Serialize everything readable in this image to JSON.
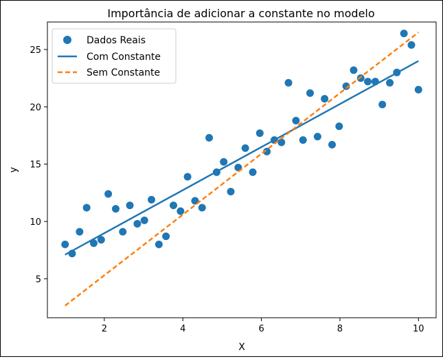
{
  "chart_data": {
    "type": "scatter",
    "title": "Importância de adicionar a constante no modelo",
    "xlabel": "X",
    "ylabel": "y",
    "xlim": [
      0.55,
      10.45
    ],
    "ylim": [
      1.6,
      27.4
    ],
    "xticks": [
      2,
      4,
      6,
      8,
      10
    ],
    "yticks": [
      5,
      10,
      15,
      20,
      25
    ],
    "grid": false,
    "legend_position": "top-left",
    "colors": {
      "points": "#1f77b4",
      "with_const": "#1f77b4",
      "no_const": "#ff7f0e"
    },
    "series": [
      {
        "name": "Dados Reais",
        "kind": "scatter",
        "x": [
          1.0,
          1.18,
          1.37,
          1.55,
          1.73,
          1.92,
          2.1,
          2.29,
          2.47,
          2.65,
          2.84,
          3.02,
          3.2,
          3.39,
          3.57,
          3.76,
          3.94,
          4.12,
          4.31,
          4.49,
          4.67,
          4.86,
          5.04,
          5.22,
          5.41,
          5.59,
          5.78,
          5.96,
          6.14,
          6.33,
          6.51,
          6.69,
          6.88,
          7.06,
          7.24,
          7.43,
          7.61,
          7.8,
          7.98,
          8.16,
          8.35,
          8.53,
          8.71,
          8.9,
          9.08,
          9.27,
          9.45,
          9.63,
          9.82,
          10.0
        ],
        "y": [
          8.0,
          7.2,
          9.1,
          11.2,
          8.1,
          8.4,
          12.4,
          11.1,
          9.1,
          11.4,
          9.8,
          10.1,
          11.9,
          8.0,
          8.7,
          11.4,
          10.9,
          13.9,
          11.8,
          11.2,
          17.3,
          14.3,
          15.2,
          12.6,
          14.7,
          16.4,
          14.3,
          17.7,
          16.1,
          17.1,
          16.9,
          22.1,
          18.8,
          17.1,
          21.2,
          17.4,
          20.7,
          16.7,
          18.3,
          21.8,
          23.2,
          22.5,
          22.2,
          22.2,
          20.2,
          22.1,
          23.0,
          26.4,
          25.4,
          21.5
        ]
      },
      {
        "name": "Com Constante",
        "kind": "line",
        "style": "solid",
        "x": [
          1,
          10
        ],
        "y": [
          7.1,
          24.0
        ]
      },
      {
        "name": "Sem Constante",
        "kind": "line",
        "style": "dashed",
        "x": [
          1,
          10
        ],
        "y": [
          2.65,
          26.5
        ]
      }
    ]
  }
}
